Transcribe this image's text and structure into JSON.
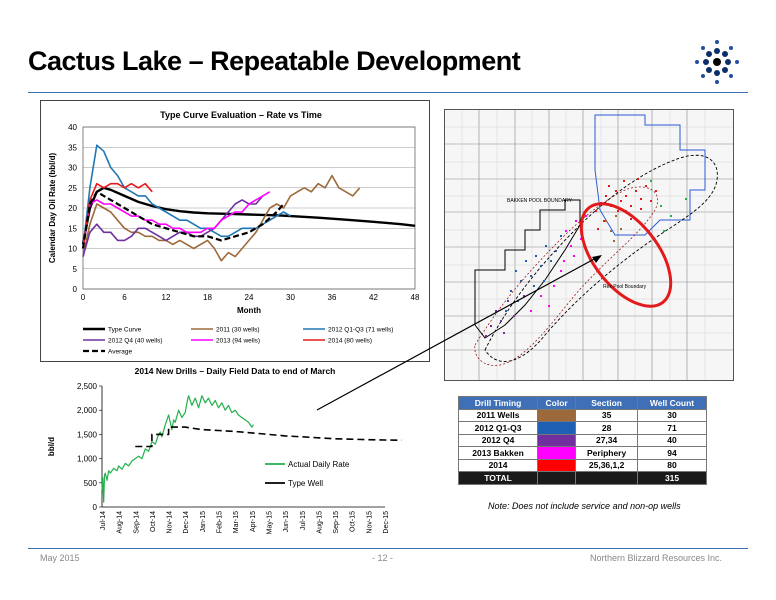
{
  "slide": {
    "title": "Cactus Lake – Repeatable Development",
    "footer_left": "May 2015",
    "footer_center": "- 12 -",
    "footer_right": "Northern Blizzard Resources Inc."
  },
  "colors": {
    "accent": "#3a6fb5",
    "type_curve": "#000000",
    "series_2011": "#9c6a3a",
    "series_2012q13": "#1f77b4",
    "series_2012q4": "#7030a0",
    "series_2013": "#ff00ff",
    "series_2014": "#e31a1c",
    "actual_daily": "#22b14c"
  },
  "map": {
    "labels": [
      "BAKKEN POOL BOUNDARY",
      "Rex Pool Boundary"
    ]
  },
  "well_table": {
    "headers": [
      "Drill Timing",
      "Color",
      "Section",
      "Well Count"
    ],
    "rows": [
      {
        "timing": "2011 Wells",
        "color": "#9c6a3a",
        "section": "35",
        "count": "30"
      },
      {
        "timing": "2012 Q1-Q3",
        "color": "#1f5fb4",
        "section": "28",
        "count": "71"
      },
      {
        "timing": "2012 Q4",
        "color": "#7030a0",
        "section": "27,34",
        "count": "40"
      },
      {
        "timing": "2013 Bakken",
        "color": "#ff00ff",
        "section": "Periphery",
        "count": "94"
      },
      {
        "timing": "2014",
        "color": "#ff0000",
        "section": "25,36,1,2",
        "count": "80"
      }
    ],
    "total_label": "TOTAL",
    "total_count": "315",
    "note": "Note: Does not include service and non-op wells"
  },
  "chart_data": [
    {
      "type": "line",
      "title": "Type Curve Evaluation – Rate vs Time",
      "xlabel": "Month",
      "ylabel": "Calendar Day Oil Rate (bbl/d)",
      "xlim": [
        0,
        48
      ],
      "ylim": [
        0,
        40
      ],
      "xticks": [
        0,
        6,
        12,
        18,
        24,
        30,
        36,
        42,
        48
      ],
      "yticks": [
        0,
        5,
        10,
        15,
        20,
        25,
        30,
        35,
        40
      ],
      "grid": true,
      "legend_position": "bottom",
      "series": [
        {
          "name": "Type Curve",
          "color": "#000000",
          "width": 2.4,
          "dash": "",
          "x": [
            0,
            1,
            2,
            3,
            4,
            6,
            8,
            10,
            12,
            14,
            16,
            18,
            20,
            22,
            24,
            26,
            28,
            30,
            34,
            38,
            42,
            46,
            48
          ],
          "y": [
            11,
            20,
            24,
            25,
            24.5,
            23,
            21.5,
            20.5,
            19.7,
            19.2,
            18.9,
            18.7,
            18.6,
            18.5,
            18.4,
            18.3,
            18.2,
            18,
            17.6,
            17.1,
            16.6,
            16,
            15.6
          ]
        },
        {
          "name": "2011 (30 wells)",
          "color": "#9c6a3a",
          "width": 1.6,
          "dash": "",
          "x": [
            0,
            1,
            2,
            3,
            4,
            5,
            6,
            7,
            8,
            9,
            10,
            11,
            12,
            13,
            14,
            15,
            16,
            17,
            18,
            19,
            20,
            21,
            22,
            23,
            24,
            25,
            26,
            27,
            28,
            29,
            30,
            31,
            32,
            33,
            34,
            35,
            36,
            37,
            38,
            39,
            40
          ],
          "y": [
            8,
            16,
            21,
            20,
            19,
            17,
            15,
            14,
            14,
            13,
            13,
            12,
            12,
            11,
            12,
            11,
            10,
            11,
            12,
            10,
            7,
            9,
            8,
            10,
            12,
            14,
            17,
            20,
            21,
            20,
            23,
            24,
            25,
            24,
            26,
            25,
            28,
            25,
            24,
            23,
            25
          ]
        },
        {
          "name": "2012 Q1-Q3 (71 wells)",
          "color": "#1f77b4",
          "width": 1.6,
          "dash": "",
          "x": [
            0,
            1,
            2,
            3,
            4,
            5,
            6,
            7,
            8,
            9,
            10,
            11,
            12,
            13,
            14,
            15,
            16,
            17,
            18,
            19,
            20,
            21,
            22,
            23,
            24,
            25,
            26,
            27,
            28,
            29,
            30
          ],
          "y": [
            10,
            25,
            35.5,
            34,
            30,
            28,
            25,
            24,
            23,
            23,
            21,
            20,
            19,
            18,
            17,
            17,
            16,
            15,
            15,
            14,
            13,
            13,
            14,
            15,
            15,
            15,
            16,
            17,
            18,
            19,
            18
          ]
        },
        {
          "name": "2012 Q4 (40 wells)",
          "color": "#7030a0",
          "width": 1.6,
          "dash": "",
          "x": [
            0,
            1,
            2,
            3,
            4,
            5,
            6,
            7,
            8,
            9,
            10,
            11,
            12,
            13,
            14,
            15,
            16,
            17,
            18,
            19,
            20,
            21,
            22,
            23,
            24,
            25,
            26
          ],
          "y": [
            8,
            14,
            16,
            14,
            14,
            12,
            12,
            13,
            15,
            15,
            14,
            13,
            12,
            13,
            14,
            14,
            13,
            13,
            14,
            15,
            17,
            19,
            21,
            22,
            21,
            21,
            23
          ]
        },
        {
          "name": "2013 (94 wells)",
          "color": "#ff00ff",
          "width": 1.6,
          "dash": "",
          "x": [
            0,
            1,
            2,
            3,
            4,
            5,
            6,
            7,
            8,
            9,
            10,
            11,
            12,
            13,
            14,
            15,
            16,
            17,
            18,
            19,
            20,
            21,
            22,
            23,
            24,
            25,
            26,
            27
          ],
          "y": [
            10,
            21,
            22,
            21,
            21,
            20,
            19,
            18,
            18,
            17,
            17,
            16,
            16,
            15,
            15,
            14,
            14,
            14,
            15,
            15,
            17,
            18,
            19,
            19,
            21,
            22,
            23,
            24
          ]
        },
        {
          "name": "2014 (80 wells)",
          "color": "#e31a1c",
          "width": 1.6,
          "dash": "",
          "x": [
            0,
            1,
            2,
            3,
            4,
            5,
            6,
            7,
            8,
            9,
            10
          ],
          "y": [
            10,
            22,
            26,
            25,
            26,
            26,
            25,
            26,
            25,
            26,
            24
          ]
        },
        {
          "name": "Average",
          "color": "#000000",
          "width": 2.2,
          "dash": "6,3",
          "x": [
            0,
            1,
            2,
            3,
            4,
            6,
            8,
            10,
            12,
            14,
            16,
            18,
            20,
            22,
            24,
            26,
            28,
            29
          ],
          "y": [
            10,
            21,
            24,
            23,
            22,
            20,
            18,
            16,
            15,
            14,
            13,
            13,
            12,
            13,
            14,
            16,
            19,
            21
          ]
        }
      ]
    },
    {
      "type": "line",
      "title": "2014 New Drills – Daily Field Data to end of March",
      "xlabel": "",
      "ylabel": "bbl/d",
      "ylim": [
        0,
        2500
      ],
      "yticks": [
        0,
        500,
        1000,
        1500,
        2000,
        2500
      ],
      "ytick_labels": [
        "0",
        "500",
        "1,000",
        "1,500",
        "2,000",
        "2,500"
      ],
      "categories": [
        "Jul-14",
        "Aug-14",
        "Sep-14",
        "Oct-14",
        "Nov-14",
        "Dec-14",
        "Jan-15",
        "Feb-15",
        "Mar-15",
        "Apr-15",
        "May-15",
        "Jun-15",
        "Jul-15",
        "Aug-15",
        "Sep-15",
        "Oct-15",
        "Nov-15",
        "Dec-15"
      ],
      "legend_position": "right",
      "series": [
        {
          "name": "Actual Daily Rate",
          "color": "#22b14c",
          "width": 1.2,
          "dash": "",
          "x": [
            0,
            0.05,
            0.1,
            0.15,
            0.2,
            0.3,
            0.4,
            0.5,
            0.7,
            0.9,
            1.0,
            1.2,
            1.4,
            1.6,
            1.8,
            2.0,
            2.2,
            2.4,
            2.6,
            2.8,
            3.0,
            3.2,
            3.4,
            3.5,
            3.6,
            3.8,
            4.0,
            4.2,
            4.3,
            4.4,
            4.6,
            4.8,
            5.0,
            5.1,
            5.2,
            5.4,
            5.6,
            5.8,
            6.0,
            6.2,
            6.4,
            6.6,
            6.8,
            7.0,
            7.2,
            7.4,
            7.6,
            7.8,
            8.0,
            8.2,
            8.4,
            8.6,
            8.8,
            9.0,
            9.1
          ],
          "y": [
            350,
            600,
            100,
            650,
            700,
            550,
            750,
            700,
            800,
            750,
            850,
            780,
            900,
            850,
            950,
            1000,
            1050,
            1000,
            1200,
            1150,
            1350,
            1300,
            1500,
            1550,
            1450,
            1700,
            1900,
            1600,
            1800,
            1750,
            2000,
            1850,
            1950,
            2150,
            2300,
            2100,
            2250,
            2050,
            2300,
            2150,
            2250,
            2100,
            2200,
            2050,
            2150,
            2000,
            2100,
            1950,
            2000,
            1900,
            1850,
            1800,
            1750,
            1650,
            1700
          ]
        },
        {
          "name": "Type Well",
          "color": "#000000",
          "width": 1.6,
          "dash": "7,4",
          "x": [
            2.0,
            3.0,
            3.0,
            4.0,
            4.0,
            5.0,
            6.0,
            7.0,
            8.0,
            9.0,
            10.0,
            11.0,
            12.0,
            13.0,
            14.0,
            15.0,
            16.0,
            17.0,
            18.0
          ],
          "y": [
            1250,
            1250,
            1500,
            1500,
            1650,
            1650,
            1600,
            1580,
            1560,
            1530,
            1500,
            1470,
            1450,
            1430,
            1410,
            1400,
            1390,
            1385,
            1380
          ]
        }
      ]
    }
  ]
}
